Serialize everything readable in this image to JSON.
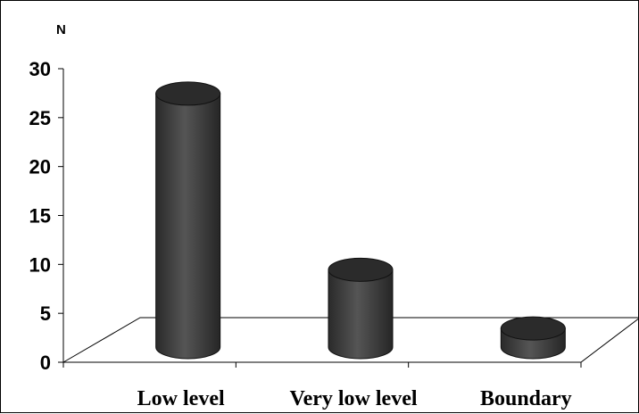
{
  "chart_data": {
    "type": "bar",
    "title": "",
    "xlabel": "",
    "ylabel": "N",
    "categories": [
      "Low level",
      "Very low  level",
      "Boundary"
    ],
    "values": [
      28,
      10,
      4
    ],
    "ylim": [
      0,
      30
    ],
    "yticks": [
      "0",
      "5",
      "10",
      "15",
      "20",
      "25",
      "30"
    ],
    "grid": false,
    "legend": "none",
    "style": "3d-cylinder",
    "bar_color": "#4a4a4a",
    "bar_top_color": "#2b2b2b"
  }
}
